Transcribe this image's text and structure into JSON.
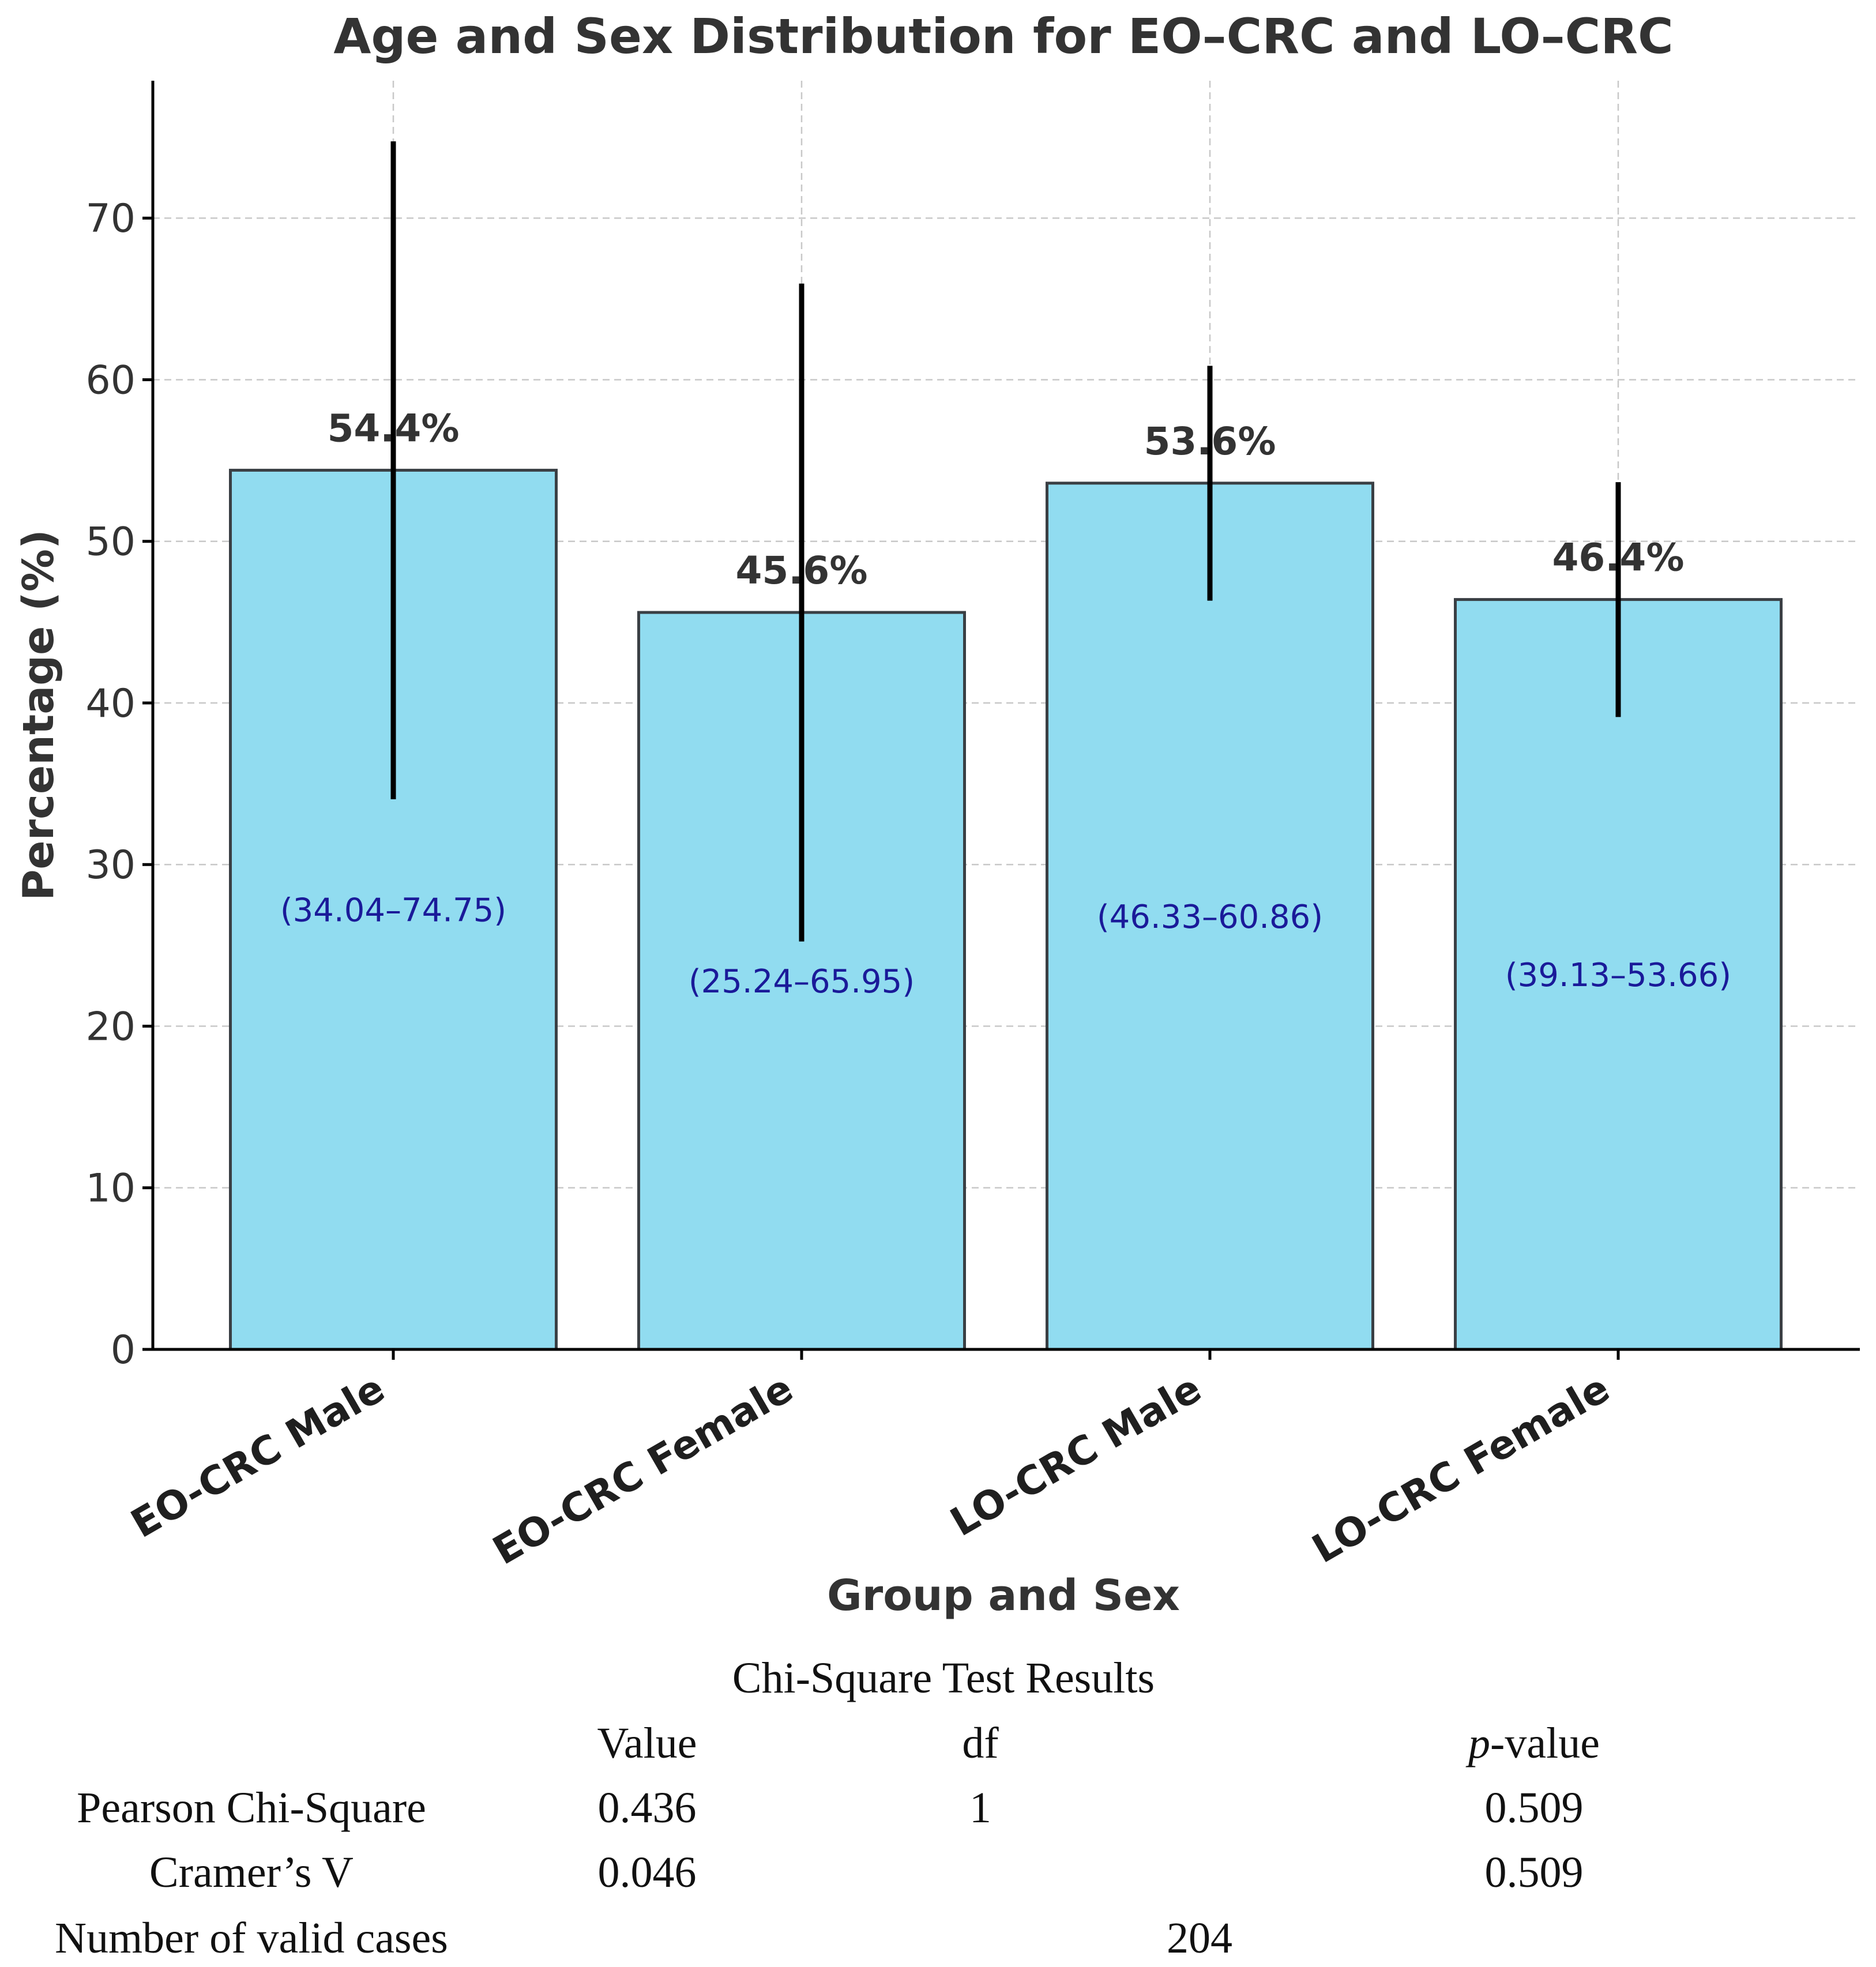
{
  "chart_data": {
    "type": "bar",
    "title": "Age and Sex Distribution for EO–CRC and LO–CRC",
    "xlabel": "Group and Sex",
    "ylabel": "Percentage (%)",
    "ylim": [
      0,
      78.5
    ],
    "yticks": [
      0,
      10,
      20,
      30,
      40,
      50,
      60,
      70
    ],
    "grid": true,
    "categories": [
      "EO-CRC Male",
      "EO-CRC Female",
      "LO-CRC Male",
      "LO-CRC Female"
    ],
    "values": [
      54.4,
      45.6,
      53.6,
      46.4
    ],
    "value_labels": [
      "54.4%",
      "45.6%",
      "53.6%",
      "46.4%"
    ],
    "ci_low": [
      34.04,
      25.24,
      46.33,
      39.13
    ],
    "ci_high": [
      74.75,
      65.95,
      60.86,
      53.66
    ],
    "ci_labels": [
      "(34.04–74.75)",
      "(25.24–65.95)",
      "(46.33–60.86)",
      "(39.13–53.66)"
    ],
    "colors": {
      "bar": "#91dcf0",
      "edge": "#3a3f44",
      "error": "#000000",
      "ci_text": "#1a1a99"
    }
  },
  "stats_table": {
    "title": "Chi-Square Test Results",
    "headers": {
      "value": "Value",
      "df": "df",
      "p_italic": "p",
      "p_rest": "-value"
    },
    "rows": [
      {
        "label": "Pearson Chi-Square",
        "value": "0.436",
        "df": "1",
        "p": "0.509"
      },
      {
        "label": "Cramer’s V",
        "value": "0.046",
        "df": "",
        "p": "0.509"
      }
    ],
    "valid_cases": {
      "label": "Number of valid cases",
      "value": "204"
    }
  }
}
